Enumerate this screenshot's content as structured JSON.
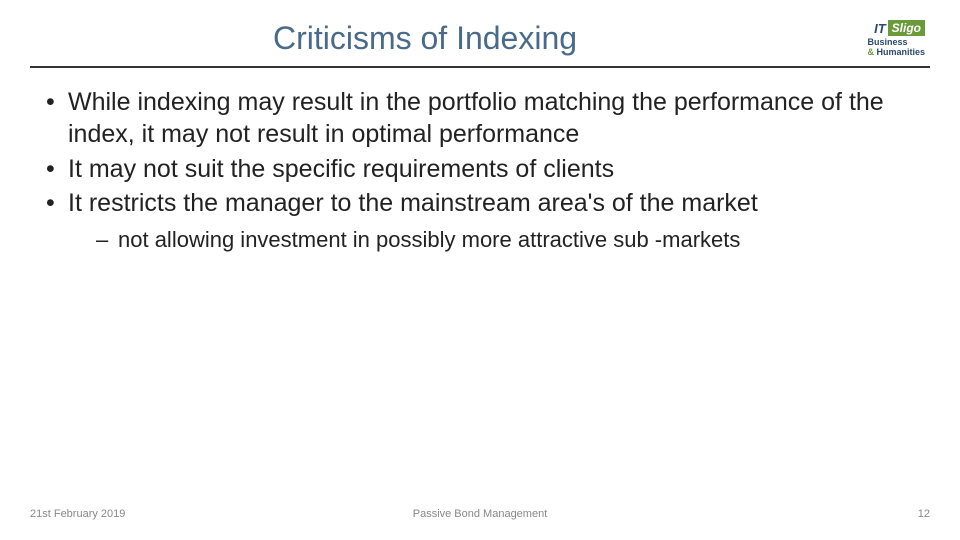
{
  "slide": {
    "title": "Criticisms of Indexing",
    "title_color": "#4a6a8a",
    "title_fontsize": 32,
    "underline_color": "#333333",
    "bullets": [
      {
        "text": "While indexing may result in the portfolio matching the performance of the index, it may not result in optimal performance"
      },
      {
        "text": "It may not suit the specific requirements of clients"
      },
      {
        "text": "It restricts the manager to the mainstream area's of the market",
        "sub": [
          {
            "text": "not allowing investment in possibly more attractive sub -markets"
          }
        ]
      }
    ],
    "bullet_fontsize": 25,
    "sub_fontsize": 22,
    "text_color": "#222222"
  },
  "logo": {
    "it_text": "IT",
    "sligo_text": "Sligo",
    "sub_line1": "Business",
    "sub_amp": "&",
    "sub_line2": "Humanities",
    "green": "#6a9a3a",
    "navy": "#2a4a6a"
  },
  "footer": {
    "date": "21st February 2019",
    "center": "Passive Bond Management",
    "page": "12",
    "color": "#888888",
    "fontsize": 11
  },
  "background_color": "#ffffff"
}
